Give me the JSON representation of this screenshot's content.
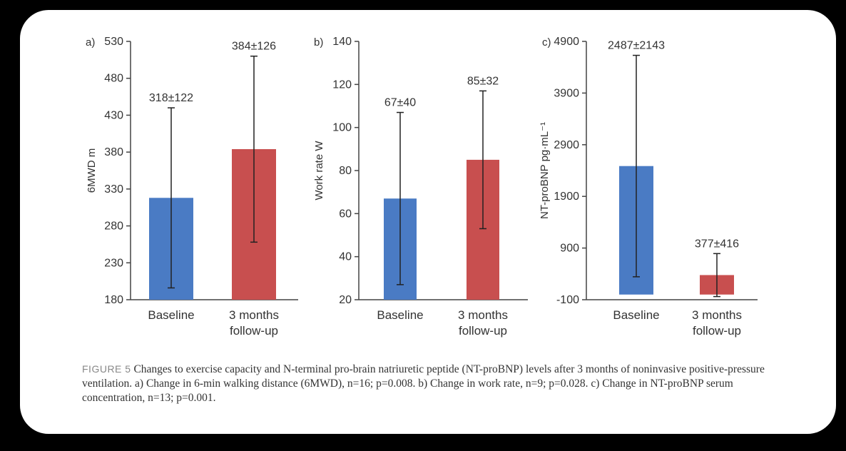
{
  "chart_data": [
    {
      "type": "bar",
      "panel_label": "a)",
      "categories": [
        "Baseline",
        "3 months\nfollow-up"
      ],
      "values": [
        318,
        384
      ],
      "errors": [
        122,
        126
      ],
      "data_labels": [
        "318±122",
        "384±126"
      ],
      "colors": [
        "#4a7bc4",
        "#c84f4f"
      ],
      "ylabel": "6MWD m",
      "ylim": [
        180,
        530
      ],
      "yticks": [
        180,
        230,
        280,
        330,
        380,
        430,
        480,
        530
      ],
      "grid": false
    },
    {
      "type": "bar",
      "panel_label": "b)",
      "categories": [
        "Baseline",
        "3 months\nfollow-up"
      ],
      "values": [
        67,
        85
      ],
      "errors": [
        40,
        32
      ],
      "data_labels": [
        "67±40",
        "85±32"
      ],
      "colors": [
        "#4a7bc4",
        "#c84f4f"
      ],
      "ylabel": "Work rate W",
      "ylim": [
        20,
        140
      ],
      "yticks": [
        20,
        40,
        60,
        80,
        100,
        120,
        140
      ],
      "grid": false
    },
    {
      "type": "bar",
      "panel_label": "c)",
      "categories": [
        "Baseline",
        "3 months\nfollow-up"
      ],
      "values": [
        2487,
        377
      ],
      "errors": [
        2143,
        416
      ],
      "data_labels": [
        "2487±2143",
        "377±416"
      ],
      "colors": [
        "#4a7bc4",
        "#c84f4f"
      ],
      "ylabel": "NT-proBNP pg·mL⁻¹",
      "ylim": [
        -100,
        4900
      ],
      "yticks": [
        -100,
        900,
        1900,
        2900,
        3900,
        4900
      ],
      "grid": false
    }
  ],
  "caption": {
    "figure_label": "FIGURE 5",
    "text": "Changes to exercise capacity and N-terminal pro-brain natriuretic peptide (NT-proBNP) levels after 3 months of noninvasive positive-pressure ventilation. a) Change in 6-min walking distance (6MWD), n=16; p=0.008. b) Change in work rate, n=9; p=0.028. c) Change in NT-proBNP serum concentration, n=13; p=0.001."
  }
}
